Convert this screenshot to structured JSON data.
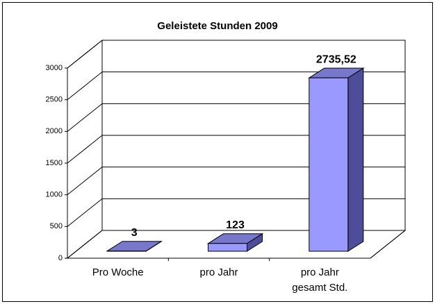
{
  "chart_data": {
    "type": "bar3d",
    "title": "Geleistete Stunden 2009",
    "categories": [
      "Pro Woche",
      "pro Jahr",
      "pro Jahr gesamt Std."
    ],
    "values": [
      3,
      123,
      2735.52
    ],
    "value_labels": [
      "3",
      "123",
      "2735,52"
    ],
    "color": "#9999ff",
    "ylim": [
      0,
      3000
    ],
    "yticks": [
      0,
      500,
      1000,
      1500,
      2000,
      2500,
      3000
    ],
    "grid": true
  }
}
